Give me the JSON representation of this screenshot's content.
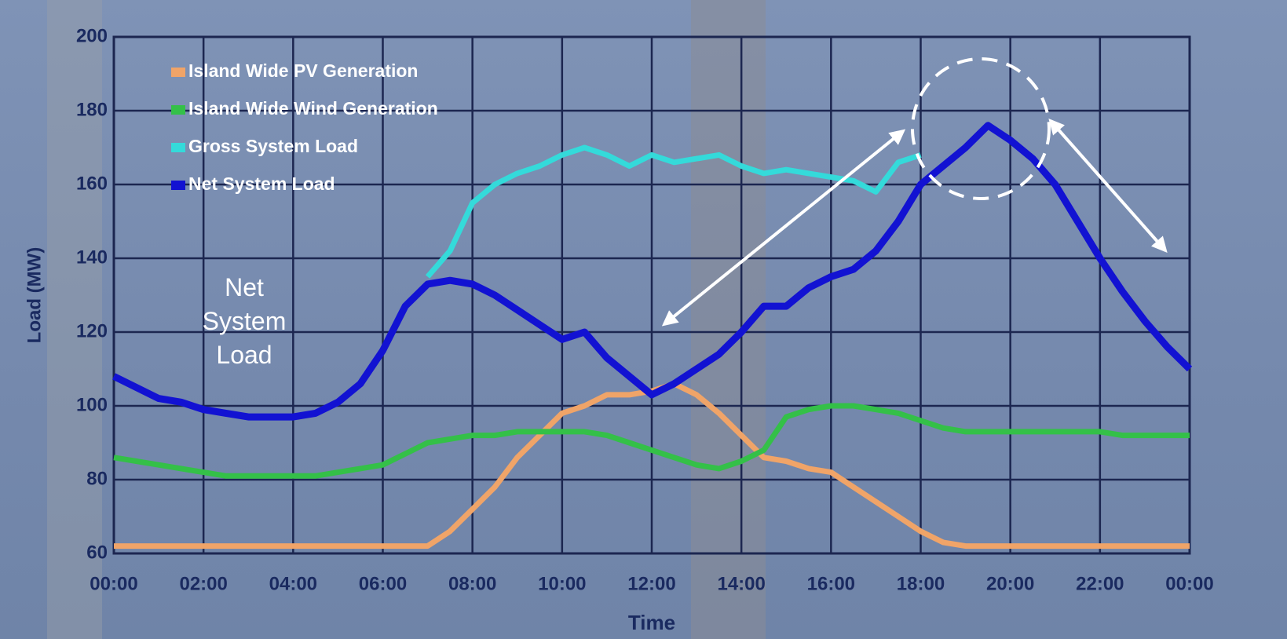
{
  "chart_data": {
    "type": "line",
    "xlabel": "Time",
    "ylabel": "Load (MW)",
    "annotation": "Net System Load",
    "x": [
      0,
      0.5,
      1,
      1.5,
      2,
      2.5,
      3,
      3.5,
      4,
      4.5,
      5,
      5.5,
      6,
      6.5,
      7,
      7.5,
      8,
      8.5,
      9,
      9.5,
      10,
      10.5,
      11,
      11.5,
      12,
      12.5,
      13,
      13.5,
      14,
      14.5,
      15,
      15.5,
      16,
      16.5,
      17,
      17.5,
      18,
      18.5,
      19,
      19.5,
      20,
      20.5,
      21,
      21.5,
      22,
      22.5,
      23,
      23.5,
      24
    ],
    "series": [
      {
        "name": "Island Wide PV Generation",
        "color": "#f0a468",
        "values": [
          62,
          62,
          62,
          62,
          62,
          62,
          62,
          62,
          62,
          62,
          62,
          62,
          62,
          62,
          62,
          66,
          72,
          78,
          86,
          92,
          98,
          100,
          103,
          103,
          104,
          106,
          103,
          98,
          92,
          86,
          85,
          83,
          82,
          78,
          74,
          70,
          66,
          63,
          62,
          62,
          62,
          62,
          62,
          62,
          62,
          62,
          62,
          62,
          62
        ]
      },
      {
        "name": "Island Wide Wind Generation",
        "color": "#34c048",
        "values": [
          86,
          85,
          84,
          83,
          82,
          81,
          81,
          81,
          81,
          81,
          82,
          83,
          84,
          87,
          90,
          91,
          92,
          92,
          93,
          93,
          93,
          93,
          92,
          90,
          88,
          86,
          84,
          83,
          85,
          88,
          97,
          99,
          100,
          100,
          99,
          98,
          96,
          94,
          93,
          93,
          93,
          93,
          93,
          93,
          93,
          92,
          92,
          92,
          92
        ]
      },
      {
        "name": "Gross System Load",
        "color": "#34dada",
        "values": [
          null,
          null,
          null,
          null,
          null,
          null,
          null,
          null,
          null,
          null,
          null,
          null,
          null,
          null,
          135,
          142,
          155,
          160,
          163,
          165,
          168,
          170,
          168,
          165,
          168,
          166,
          167,
          168,
          165,
          163,
          164,
          163,
          162,
          161,
          158,
          166,
          168,
          null,
          null,
          null,
          null,
          null,
          null,
          null,
          null,
          null,
          null,
          null,
          null
        ]
      },
      {
        "name": "Net System Load",
        "color": "#1212d2",
        "values": [
          108,
          105,
          102,
          101,
          99,
          98,
          97,
          97,
          97,
          98,
          101,
          106,
          115,
          127,
          133,
          134,
          133,
          130,
          126,
          122,
          118,
          120,
          113,
          108,
          103,
          106,
          110,
          114,
          120,
          127,
          127,
          132,
          135,
          137,
          142,
          150,
          160,
          165,
          170,
          176,
          172,
          167,
          160,
          150,
          140,
          131,
          123,
          116,
          110
        ]
      }
    ],
    "xlim": [
      0,
      24
    ],
    "xticks": [
      {
        "value": 0,
        "label": "00:00"
      },
      {
        "value": 2,
        "label": "02:00"
      },
      {
        "value": 4,
        "label": "04:00"
      },
      {
        "value": 6,
        "label": "06:00"
      },
      {
        "value": 8,
        "label": "08:00"
      },
      {
        "value": 10,
        "label": "10:00"
      },
      {
        "value": 12,
        "label": "12:00"
      },
      {
        "value": 14,
        "label": "14:00"
      },
      {
        "value": 16,
        "label": "16:00"
      },
      {
        "value": 18,
        "label": "18:00"
      },
      {
        "value": 20,
        "label": "20:00"
      },
      {
        "value": 22,
        "label": "22:00"
      },
      {
        "value": 24,
        "label": "00:00"
      }
    ],
    "ylim": [
      60,
      200
    ],
    "yticks": [
      60,
      80,
      100,
      120,
      140,
      160,
      180,
      200
    ],
    "grid": true,
    "legend": "upper left"
  }
}
